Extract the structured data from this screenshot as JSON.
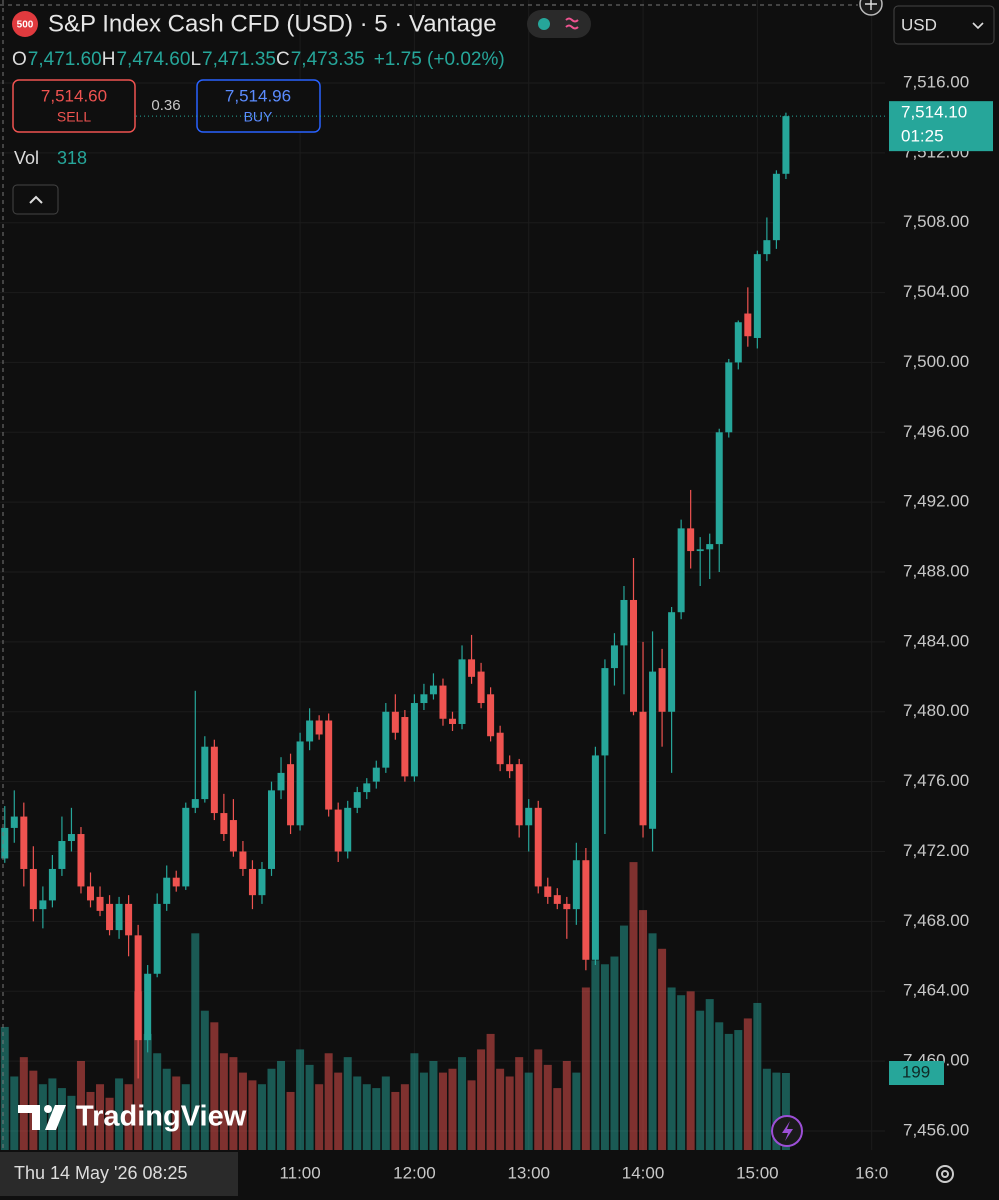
{
  "chart_data": {
    "type": "candlestick",
    "title": "S&P Index Cash CFD (USD) · 5 · Vantage",
    "symbol_badge": "500",
    "currency": "USD",
    "legend": {
      "labels": [
        "O",
        "H",
        "L",
        "C"
      ],
      "values": [
        "7,471.60",
        "7,474.60",
        "7,471.35",
        "7,473.35"
      ],
      "change": "+1.75 (+0.02%)"
    },
    "sell": {
      "price": "7,514.60",
      "label": "SELL"
    },
    "spread": "0.36",
    "buy": {
      "price": "7,514.96",
      "label": "BUY"
    },
    "last_price_label": "7,514.10",
    "countdown": "01:25",
    "crosshair_label": "Thu 14 May '26 08:25",
    "logo": "TradingView",
    "up_color": "#26a69a",
    "down_color": "#ef5350",
    "grid": true,
    "x": [
      505,
      510,
      515,
      520,
      525,
      530,
      535,
      540,
      545,
      550,
      555,
      560,
      565,
      570,
      575,
      580,
      585,
      590,
      595,
      600,
      605,
      610,
      615,
      620,
      625,
      630,
      635,
      640,
      645,
      650,
      655,
      660,
      665,
      670,
      675,
      680,
      685,
      690,
      695,
      700,
      705,
      710,
      715,
      720,
      725,
      730,
      735,
      740,
      745,
      750,
      755,
      760,
      765,
      770,
      775,
      780,
      785,
      790,
      795,
      800,
      805,
      810,
      815,
      820,
      825,
      830,
      835,
      840,
      845,
      850,
      855,
      860,
      865,
      870,
      875,
      880,
      885,
      890,
      895,
      900,
      905,
      910,
      915
    ],
    "open": [
      7471.6,
      7473.35,
      7474.0,
      7471.0,
      7468.7,
      7469.2,
      7471.0,
      7472.6,
      7473.0,
      7470.0,
      7469.4,
      7469.0,
      7467.5,
      7469.0,
      7467.2,
      7461.2,
      7465.0,
      7469.0,
      7470.5,
      7470.0,
      7474.5,
      7475.0,
      7478.0,
      7474.2,
      7473.8,
      7472.0,
      7471.0,
      7469.5,
      7471.0,
      7475.5,
      7477.0,
      7473.5,
      7478.3,
      7479.5,
      7479.5,
      7474.4,
      7472.0,
      7474.5,
      7475.4,
      7476.0,
      7476.8,
      7480.0,
      7479.7,
      7476.3,
      7480.5,
      7481.0,
      7481.5,
      7479.6,
      7479.3,
      7483.0,
      7482.3,
      7481.0,
      7478.8,
      7477.0,
      7477.0,
      7473.5,
      7474.5,
      7470.0,
      7469.5,
      7469.0,
      7468.7,
      7471.5,
      7465.8,
      7477.5,
      7482.5,
      7483.8,
      7486.4,
      7480.0,
      7473.3,
      7482.5,
      7480.0,
      7485.7,
      7490.5,
      7489.2,
      7489.3,
      7489.6,
      7496.0,
      7500.0,
      7502.8,
      7501.4,
      7506.2,
      7507.0,
      7510.8
    ],
    "high": [
      7474.6,
      7475.5,
      7474.8,
      7472.3,
      7470.0,
      7471.8,
      7474.0,
      7474.5,
      7473.4,
      7470.8,
      7470.0,
      7469.5,
      7469.4,
      7469.5,
      7467.8,
      7465.5,
      7469.6,
      7471.2,
      7470.9,
      7474.8,
      7481.2,
      7478.6,
      7478.4,
      7475.3,
      7475.0,
      7472.6,
      7471.5,
      7471.4,
      7476.0,
      7477.4,
      7477.6,
      7478.8,
      7480.2,
      7479.8,
      7479.9,
      7474.8,
      7474.9,
      7475.7,
      7476.2,
      7477.2,
      7480.5,
      7481.0,
      7480.1,
      7481.0,
      7481.6,
      7482.2,
      7481.9,
      7480.0,
      7483.8,
      7484.4,
      7482.8,
      7481.4,
      7479.2,
      7477.5,
      7477.3,
      7475.0,
      7474.9,
      7470.5,
      7469.9,
      7469.4,
      7472.5,
      7472.2,
      7478.0,
      7483.0,
      7484.5,
      7487.2,
      7488.8,
      7484.0,
      7484.6,
      7483.6,
      7486.0,
      7491.0,
      7492.7,
      7490.0,
      7490.2,
      7496.2,
      7500.2,
      7502.4,
      7504.3,
      7506.4,
      7508.3,
      7511.0,
      7514.3
    ],
    "low": [
      7471.35,
      7472.5,
      7470.0,
      7468.0,
      7467.6,
      7468.8,
      7470.6,
      7472.0,
      7469.6,
      7468.8,
      7468.3,
      7467.2,
      7467.0,
      7466.0,
      7459.0,
      7460.5,
      7464.8,
      7468.6,
      7469.7,
      7469.8,
      7474.2,
      7474.8,
      7473.8,
      7472.6,
      7471.7,
      7470.6,
      7468.7,
      7469.0,
      7470.6,
      7475.0,
      7473.0,
      7473.2,
      7477.8,
      7478.4,
      7474.0,
      7471.4,
      7471.6,
      7474.2,
      7475.0,
      7475.6,
      7476.5,
      7478.4,
      7476.0,
      7476.0,
      7480.1,
      7480.7,
      7479.2,
      7478.9,
      7479.0,
      7481.6,
      7480.2,
      7478.3,
      7476.6,
      7476.2,
      7472.8,
      7472.0,
      7469.6,
      7469.0,
      7468.7,
      7467.0,
      7467.8,
      7465.2,
      7465.5,
      7473.0,
      7481.5,
      7481.0,
      7479.8,
      7472.8,
      7472.0,
      7478.0,
      7476.5,
      7485.3,
      7488.2,
      7487.2,
      7487.6,
      7488.0,
      7495.7,
      7499.6,
      7500.9,
      7500.8,
      7505.8,
      7506.5,
      7510.5
    ],
    "close": [
      7473.35,
      7474.0,
      7471.0,
      7468.7,
      7469.2,
      7471.0,
      7472.6,
      7473.0,
      7470.0,
      7469.2,
      7468.6,
      7467.5,
      7469.0,
      7467.2,
      7461.2,
      7465.0,
      7469.0,
      7470.5,
      7470.0,
      7474.5,
      7475.0,
      7478.0,
      7474.2,
      7473.0,
      7472.0,
      7471.0,
      7469.5,
      7471.0,
      7475.5,
      7476.5,
      7473.5,
      7478.3,
      7479.5,
      7478.7,
      7474.4,
      7472.0,
      7474.5,
      7475.4,
      7475.9,
      7476.8,
      7480.0,
      7478.8,
      7476.3,
      7480.5,
      7481.0,
      7481.5,
      7479.6,
      7479.3,
      7483.0,
      7482.0,
      7480.5,
      7478.6,
      7477.0,
      7476.6,
      7473.5,
      7474.5,
      7470.0,
      7469.4,
      7469.0,
      7468.7,
      7471.5,
      7465.8,
      7477.5,
      7482.5,
      7483.8,
      7486.4,
      7480.0,
      7473.5,
      7482.3,
      7480.0,
      7485.7,
      7490.5,
      7489.2,
      7489.3,
      7489.6,
      7496.0,
      7500.0,
      7502.3,
      7501.5,
      7506.2,
      7507.0,
      7510.8,
      7514.1
    ],
    "volume": {
      "name": "Vol",
      "axis": "y2",
      "values": [
        318,
        190,
        240,
        205,
        170,
        185,
        160,
        140,
        230,
        150,
        170,
        135,
        185,
        170,
        410,
        300,
        250,
        210,
        190,
        170,
        560,
        360,
        330,
        250,
        240,
        200,
        180,
        170,
        210,
        230,
        150,
        260,
        220,
        170,
        250,
        200,
        240,
        190,
        170,
        160,
        190,
        150,
        170,
        250,
        200,
        230,
        200,
        210,
        240,
        180,
        260,
        300,
        210,
        190,
        240,
        200,
        260,
        220,
        160,
        230,
        200,
        420,
        490,
        480,
        500,
        580,
        744,
        620,
        560,
        520,
        420,
        400,
        410,
        360,
        390,
        330,
        300,
        310,
        340,
        380,
        210,
        200,
        199
      ]
    },
    "xlim": [
      502.5,
      967
    ],
    "xticks": [
      {
        "value": 660,
        "label": "11:00"
      },
      {
        "value": 720,
        "label": "12:00"
      },
      {
        "value": 780,
        "label": "13:00"
      },
      {
        "value": 840,
        "label": "14:00"
      },
      {
        "value": 900,
        "label": "15:00"
      },
      {
        "value": 960,
        "label": "16:0"
      }
    ],
    "ylim": [
      7454.91,
      7520.75
    ],
    "yticks": [
      {
        "value": 7516,
        "label": "7,516.00"
      },
      {
        "value": 7512,
        "label": "7,512.00"
      },
      {
        "value": 7508,
        "label": "7,508.00"
      },
      {
        "value": 7504,
        "label": "7,504.00"
      },
      {
        "value": 7500,
        "label": "7,500.00"
      },
      {
        "value": 7496,
        "label": "7,496.00"
      },
      {
        "value": 7492,
        "label": "7,492.00"
      },
      {
        "value": 7488,
        "label": "7,488.00"
      },
      {
        "value": 7484,
        "label": "7,484.00"
      },
      {
        "value": 7480,
        "label": "7,480.00"
      },
      {
        "value": 7476,
        "label": "7,476.00"
      },
      {
        "value": 7472,
        "label": "7,472.00"
      },
      {
        "value": 7468,
        "label": "7,468.00"
      },
      {
        "value": 7464,
        "label": "7,464.00"
      },
      {
        "value": 7460,
        "label": "7,460.00"
      },
      {
        "value": 7456,
        "label": "7,456.00"
      }
    ],
    "y2lim": [
      0,
      2972
    ]
  }
}
